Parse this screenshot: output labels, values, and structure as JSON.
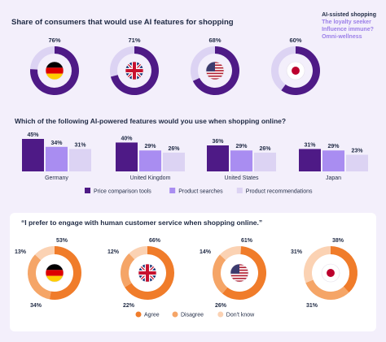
{
  "nav": {
    "items": [
      {
        "label": "AI-ssisted shopping",
        "active": true
      },
      {
        "label": "The loyalty seeker",
        "active": false
      },
      {
        "label": "Influence immune?",
        "active": false
      },
      {
        "label": "Omni-wellness",
        "active": false
      }
    ]
  },
  "sections": {
    "title1": "Share of consumers that would use AI features for shopping",
    "title2": "Which of the following AI-powered features would you use when shopping online?",
    "quote": "“I prefer to engage with human customer service when shopping online.”"
  },
  "colors": {
    "dark_purple": "#4e1a86",
    "mid_purple": "#a98df1",
    "light_purple": "#dcd3f3",
    "orange_dark": "#f07c2a",
    "orange_mid": "#f5a567",
    "orange_light": "#fbd2b3"
  },
  "chart_data": [
    {
      "type": "pie",
      "title": "Share of consumers that would use AI features for shopping",
      "categories": [
        "Germany",
        "United Kingdom",
        "United States",
        "Japan"
      ],
      "values": [
        76,
        71,
        68,
        60
      ],
      "value_labels": [
        "76%",
        "71%",
        "68%",
        "60%"
      ],
      "icons": [
        "germany-flag",
        "uk-flag",
        "us-flag",
        "japan-flag"
      ]
    },
    {
      "type": "bar",
      "title": "Which of the following AI-powered features would you use when shopping online?",
      "categories": [
        "Germany",
        "United Kingdom",
        "United States",
        "Japan"
      ],
      "series": [
        {
          "name": "Price comparison tools",
          "values": [
            45,
            40,
            36,
            31
          ]
        },
        {
          "name": "Product searches",
          "values": [
            34,
            29,
            29,
            29
          ]
        },
        {
          "name": "Product recommendations",
          "values": [
            31,
            26,
            26,
            23
          ]
        }
      ],
      "ylim": [
        0,
        45
      ],
      "legend": "bottom"
    },
    {
      "type": "pie",
      "title": "“I prefer to engage with human customer service when shopping online.”",
      "categories": [
        "Germany",
        "United Kingdom",
        "United States",
        "Japan"
      ],
      "series": [
        {
          "name": "Agree",
          "values": [
            53,
            66,
            61,
            38
          ]
        },
        {
          "name": "Disagree",
          "values": [
            34,
            22,
            26,
            31
          ]
        },
        {
          "name": "Don't know",
          "values": [
            13,
            12,
            14,
            31
          ]
        }
      ],
      "legend": "bottom"
    }
  ]
}
